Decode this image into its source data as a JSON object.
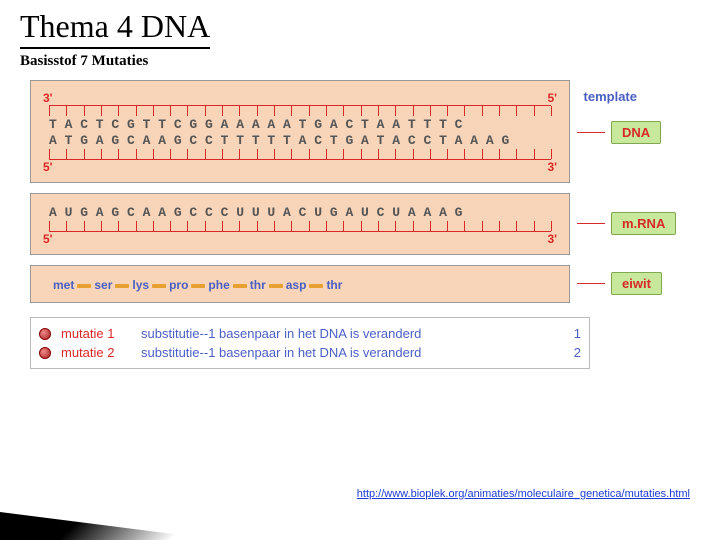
{
  "title": "Thema 4 DNA",
  "subtitle": "Basisstof 7 Mutaties",
  "template_label": "template",
  "dna": {
    "end_tl": "3'",
    "end_tr": "5'",
    "top": "T A C T C G T T C G G A A A A A T G A C T A A T T T C",
    "bottom": "A T G A G C A A G C C T T T T T A C T G A T A C C T A A A G",
    "end_bl": "5'",
    "end_br": "3'",
    "label": "DNA"
  },
  "mrna": {
    "end_l": "5'",
    "end_r": "3'",
    "seq": "A U G A G C A A G C C C U U U A C U G A U C U A A A G",
    "label": "m.RNA"
  },
  "protein": {
    "aa": [
      "met",
      "ser",
      "lys",
      "pro",
      "phe",
      "thr",
      "asp",
      "thr"
    ],
    "label": "eiwit"
  },
  "mutations": [
    {
      "label": "mutatie 1",
      "desc": "substitutie--1 basenpaar in het DNA is veranderd",
      "n": "1"
    },
    {
      "label": "mutatie 2",
      "desc": "substitutie--1 basenpaar in het DNA is veranderd",
      "n": "2"
    }
  ],
  "url": "http://www.bioplek.org/animaties/moleculaire_genetica/mutaties.html",
  "style": {
    "peach": "#f8d4b8",
    "green_pill": "#c8e89c",
    "red": "#d82828",
    "blue": "#4a5fc4",
    "tick_count": 30
  }
}
